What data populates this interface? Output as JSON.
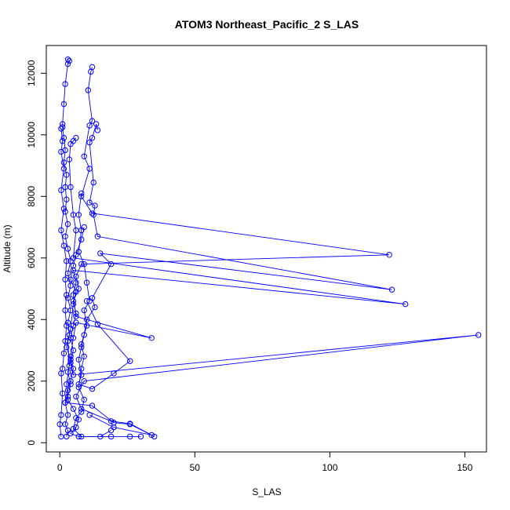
{
  "chart_data": {
    "type": "line",
    "title": "ATOM3 Northeast_Pacific_2 S_LAS",
    "xlabel": "S_LAS",
    "ylabel": "Altitude (m)",
    "xlim": [
      -5,
      158
    ],
    "ylim": [
      -300,
      12900
    ],
    "x_ticks": [
      0,
      50,
      100,
      150
    ],
    "y_ticks": [
      0,
      2000,
      4000,
      6000,
      8000,
      10000,
      12000
    ],
    "grid": false,
    "legend": "none",
    "color": "#0000ff",
    "series": [
      {
        "values": [
          {
            "x": 3,
            "y": 12450
          },
          {
            "x": 3.5,
            "y": 12400
          },
          {
            "x": 3,
            "y": 12300
          },
          {
            "x": 2,
            "y": 11650
          },
          {
            "x": 1.5,
            "y": 11000
          },
          {
            "x": 1,
            "y": 10350
          },
          {
            "x": 1,
            "y": 10250
          },
          {
            "x": 1.5,
            "y": 9900
          },
          {
            "x": 2,
            "y": 9500
          },
          {
            "x": 1.5,
            "y": 9100
          },
          {
            "x": 2.5,
            "y": 8700
          },
          {
            "x": 2,
            "y": 8300
          },
          {
            "x": 2.5,
            "y": 7900
          },
          {
            "x": 2,
            "y": 7500
          },
          {
            "x": 3,
            "y": 7100
          },
          {
            "x": 2,
            "y": 6700
          },
          {
            "x": 3,
            "y": 6300
          },
          {
            "x": 4,
            "y": 5900
          },
          {
            "x": 3,
            "y": 5500
          },
          {
            "x": 4,
            "y": 5100
          },
          {
            "x": 3,
            "y": 4700
          },
          {
            "x": 4,
            "y": 4300
          },
          {
            "x": 3,
            "y": 3900
          },
          {
            "x": 3.5,
            "y": 3500
          },
          {
            "x": 2.5,
            "y": 3100
          },
          {
            "x": 4,
            "y": 2700
          },
          {
            "x": 3,
            "y": 2300
          },
          {
            "x": 4,
            "y": 1900
          },
          {
            "x": 3,
            "y": 1500
          },
          {
            "x": 2,
            "y": 1300
          },
          {
            "x": 3,
            "y": 900
          },
          {
            "x": 2,
            "y": 600
          },
          {
            "x": 3,
            "y": 400
          },
          {
            "x": 2.5,
            "y": 200
          }
        ]
      },
      {
        "values": [
          {
            "x": 12,
            "y": 12200
          },
          {
            "x": 11.5,
            "y": 12050
          },
          {
            "x": 10.5,
            "y": 11450
          },
          {
            "x": 12,
            "y": 10450
          },
          {
            "x": 11,
            "y": 10300
          },
          {
            "x": 9,
            "y": 9300
          },
          {
            "x": 11,
            "y": 8900
          },
          {
            "x": 8,
            "y": 8000
          },
          {
            "x": 12,
            "y": 7450
          },
          {
            "x": 122,
            "y": 6100
          },
          {
            "x": 8,
            "y": 5800
          },
          {
            "x": 6,
            "y": 5400
          },
          {
            "x": 7,
            "y": 5000
          },
          {
            "x": 5,
            "y": 4600
          },
          {
            "x": 6,
            "y": 4200
          },
          {
            "x": 5,
            "y": 3800
          },
          {
            "x": 4,
            "y": 3400
          },
          {
            "x": 5,
            "y": 3000
          },
          {
            "x": 4,
            "y": 2600
          },
          {
            "x": 5,
            "y": 2200
          },
          {
            "x": 155,
            "y": 3500
          },
          {
            "x": 9,
            "y": 2000
          },
          {
            "x": 6,
            "y": 1500
          },
          {
            "x": 8,
            "y": 1100
          },
          {
            "x": 19,
            "y": 700
          },
          {
            "x": 26,
            "y": 620
          },
          {
            "x": 34,
            "y": 250
          },
          {
            "x": 20,
            "y": 500
          },
          {
            "x": 11,
            "y": 900
          }
        ]
      },
      {
        "values": [
          {
            "x": 14,
            "y": 10150
          },
          {
            "x": 13.5,
            "y": 10350
          },
          {
            "x": 12,
            "y": 9900
          },
          {
            "x": 11,
            "y": 9750
          },
          {
            "x": 12.5,
            "y": 8450
          },
          {
            "x": 11,
            "y": 7800
          },
          {
            "x": 13,
            "y": 7700
          },
          {
            "x": 12.5,
            "y": 7400
          },
          {
            "x": 14,
            "y": 6700
          },
          {
            "x": 123,
            "y": 4970
          },
          {
            "x": 15,
            "y": 6150
          },
          {
            "x": 19,
            "y": 5800
          },
          {
            "x": 12,
            "y": 4700
          },
          {
            "x": 13,
            "y": 4400
          },
          {
            "x": 10,
            "y": 4000
          },
          {
            "x": 9,
            "y": 3500
          },
          {
            "x": 8,
            "y": 3100
          },
          {
            "x": 7,
            "y": 2700
          },
          {
            "x": 8,
            "y": 2200
          },
          {
            "x": 7,
            "y": 1900
          },
          {
            "x": 12,
            "y": 1750
          },
          {
            "x": 20,
            "y": 2250
          },
          {
            "x": 26,
            "y": 2650
          },
          {
            "x": 14,
            "y": 3850
          },
          {
            "x": 10,
            "y": 4600
          }
        ]
      },
      {
        "values": [
          {
            "x": 6,
            "y": 9900
          },
          {
            "x": 5,
            "y": 9800
          },
          {
            "x": 4,
            "y": 9700
          },
          {
            "x": 3.5,
            "y": 9200
          },
          {
            "x": 4,
            "y": 8300
          },
          {
            "x": 5,
            "y": 7400
          },
          {
            "x": 6,
            "y": 6900
          },
          {
            "x": 5,
            "y": 6000
          },
          {
            "x": 128,
            "y": 4500
          },
          {
            "x": 5,
            "y": 5600
          },
          {
            "x": 6,
            "y": 5200
          },
          {
            "x": 5,
            "y": 4800
          },
          {
            "x": 6,
            "y": 4100
          },
          {
            "x": 34,
            "y": 3400
          },
          {
            "x": 6,
            "y": 3900
          },
          {
            "x": 5,
            "y": 3400
          },
          {
            "x": 4,
            "y": 2800
          },
          {
            "x": 5,
            "y": 2400
          },
          {
            "x": 4,
            "y": 2000
          },
          {
            "x": 3,
            "y": 1700
          },
          {
            "x": 2,
            "y": 1300
          },
          {
            "x": 12,
            "y": 1200
          },
          {
            "x": 20,
            "y": 650
          },
          {
            "x": 26,
            "y": 600
          },
          {
            "x": 35,
            "y": 200
          }
        ]
      },
      {
        "values": [
          {
            "x": 0.5,
            "y": 10200
          },
          {
            "x": 1,
            "y": 9800
          },
          {
            "x": 0.5,
            "y": 9450
          },
          {
            "x": 1.5,
            "y": 8900
          },
          {
            "x": 0.5,
            "y": 8200
          },
          {
            "x": 1.5,
            "y": 7600
          },
          {
            "x": 0.5,
            "y": 6900
          },
          {
            "x": 1.5,
            "y": 6400
          },
          {
            "x": 2.5,
            "y": 5900
          },
          {
            "x": 2,
            "y": 5300
          },
          {
            "x": 2.5,
            "y": 4800
          },
          {
            "x": 2,
            "y": 4300
          },
          {
            "x": 2.5,
            "y": 3800
          },
          {
            "x": 2,
            "y": 3300
          },
          {
            "x": 1.5,
            "y": 2900
          },
          {
            "x": 1,
            "y": 2400
          },
          {
            "x": 0.5,
            "y": 2250
          },
          {
            "x": 1,
            "y": 1600
          },
          {
            "x": 0.5,
            "y": 900
          },
          {
            "x": 0,
            "y": 600
          },
          {
            "x": 0.5,
            "y": 200
          }
        ]
      },
      {
        "values": [
          {
            "x": 8,
            "y": 8100
          },
          {
            "x": 7,
            "y": 7400
          },
          {
            "x": 8,
            "y": 6900
          },
          {
            "x": 7,
            "y": 6200
          },
          {
            "x": 9,
            "y": 5800
          },
          {
            "x": 10,
            "y": 5200
          },
          {
            "x": 11,
            "y": 4600
          },
          {
            "x": 9,
            "y": 4300
          },
          {
            "x": 10,
            "y": 3800
          },
          {
            "x": 8,
            "y": 3200
          },
          {
            "x": 9,
            "y": 2800
          },
          {
            "x": 8,
            "y": 2400
          },
          {
            "x": 7,
            "y": 1800
          },
          {
            "x": 9,
            "y": 1400
          },
          {
            "x": 8,
            "y": 1000
          },
          {
            "x": 6,
            "y": 800
          },
          {
            "x": 5,
            "y": 450
          },
          {
            "x": 8,
            "y": 200
          },
          {
            "x": 19,
            "y": 200
          },
          {
            "x": 26,
            "y": 200
          },
          {
            "x": 30,
            "y": 200
          }
        ]
      },
      {
        "values": [
          {
            "x": 9,
            "y": 7000
          },
          {
            "x": 8,
            "y": 6600
          },
          {
            "x": 6,
            "y": 6100
          },
          {
            "x": 5,
            "y": 5750
          },
          {
            "x": 4,
            "y": 5300
          },
          {
            "x": 6,
            "y": 4900
          },
          {
            "x": 5,
            "y": 4500
          },
          {
            "x": 4,
            "y": 3700
          },
          {
            "x": 3,
            "y": 3300
          },
          {
            "x": 3.5,
            "y": 2500
          },
          {
            "x": 2.5,
            "y": 1900
          },
          {
            "x": 3,
            "y": 1400
          },
          {
            "x": 5,
            "y": 1100
          },
          {
            "x": 7,
            "y": 750
          },
          {
            "x": 6,
            "y": 500
          },
          {
            "x": 4,
            "y": 300
          },
          {
            "x": 7,
            "y": 200
          },
          {
            "x": 15,
            "y": 200
          },
          {
            "x": 19,
            "y": 400
          }
        ]
      }
    ]
  }
}
